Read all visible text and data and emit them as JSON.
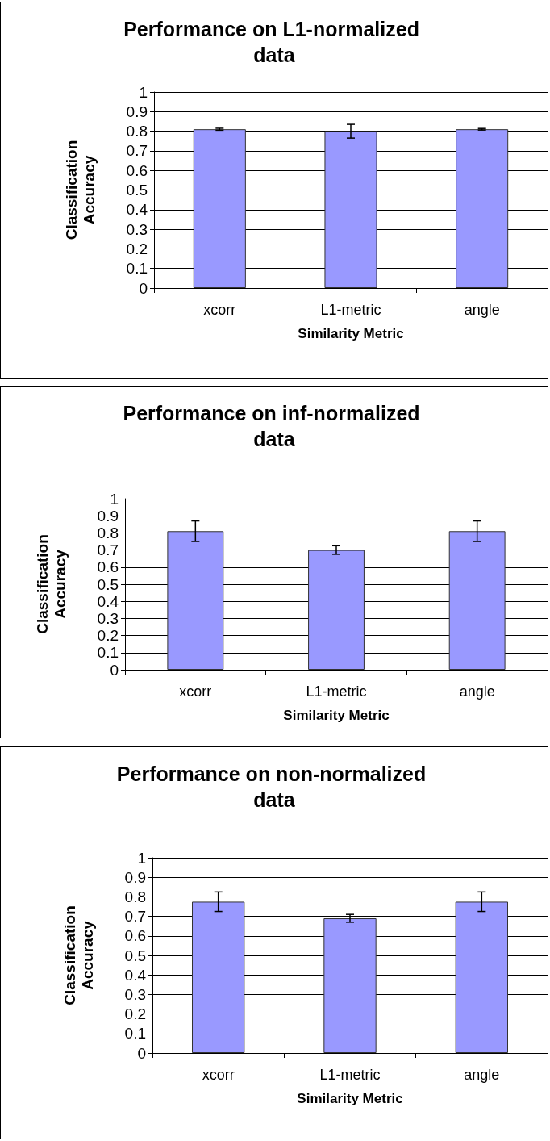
{
  "chart_data": [
    {
      "type": "bar",
      "title": "Performance on L1-normalized data",
      "xlabel": "Similarity Metric",
      "ylabel": "Classification Accuracy",
      "categories": [
        "xcorr",
        "L1-metric",
        "angle"
      ],
      "values": [
        0.81,
        0.8,
        0.81
      ],
      "errors": [
        0.005,
        0.035,
        0.004
      ],
      "color": "#9999ff",
      "ylim": [
        0,
        1
      ],
      "yticks": [
        0,
        0.1,
        0.2,
        0.3,
        0.4,
        0.5,
        0.6,
        0.7,
        0.8,
        0.9,
        1
      ],
      "grid": "y"
    },
    {
      "type": "bar",
      "title": "Performance on inf-normalized data",
      "xlabel": "Similarity Metric",
      "ylabel": "Classification Accuracy",
      "categories": [
        "xcorr",
        "L1-metric",
        "angle"
      ],
      "values": [
        0.81,
        0.7,
        0.81
      ],
      "errors": [
        0.06,
        0.025,
        0.06
      ],
      "color": "#9999ff",
      "ylim": [
        0,
        1
      ],
      "yticks": [
        0,
        0.1,
        0.2,
        0.3,
        0.4,
        0.5,
        0.6,
        0.7,
        0.8,
        0.9,
        1
      ],
      "grid": "y"
    },
    {
      "type": "bar",
      "title": "Performance on non-normalized data",
      "xlabel": "Similarity Metric",
      "ylabel": "Classification Accuracy",
      "categories": [
        "xcorr",
        "L1-metric",
        "angle"
      ],
      "values": [
        0.775,
        0.69,
        0.775
      ],
      "errors": [
        0.05,
        0.02,
        0.05
      ],
      "color": "#9999ff",
      "ylim": [
        0,
        1
      ],
      "yticks": [
        0,
        0.1,
        0.2,
        0.3,
        0.4,
        0.5,
        0.6,
        0.7,
        0.8,
        0.9,
        1
      ],
      "grid": "y"
    }
  ]
}
